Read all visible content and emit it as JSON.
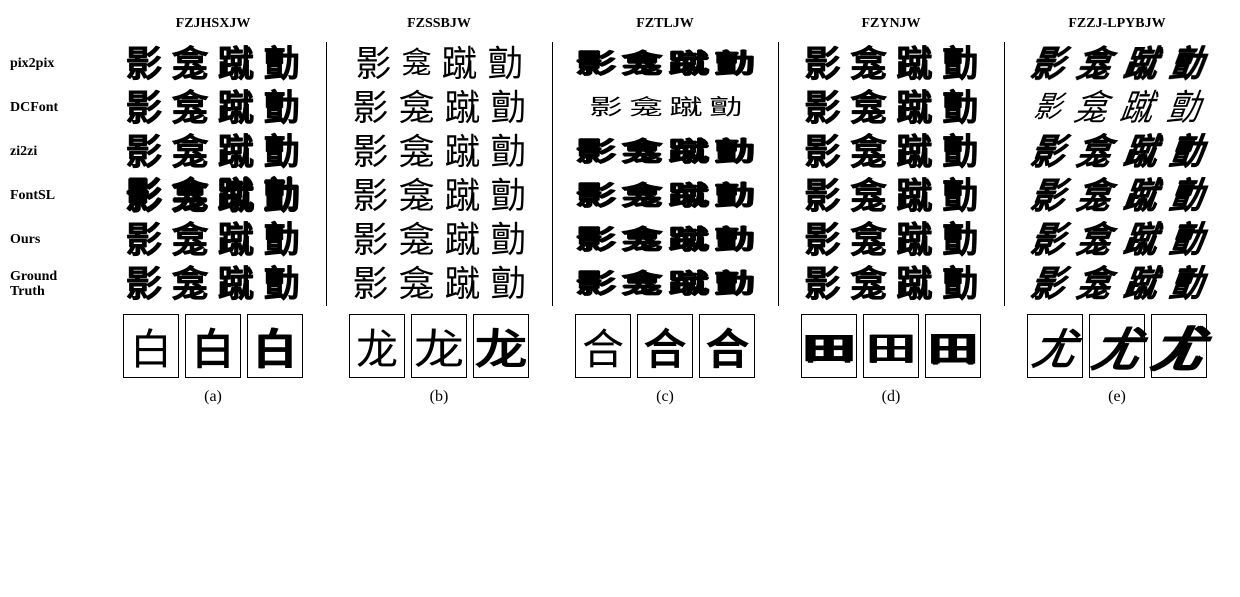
{
  "columns": [
    {
      "id": "a",
      "header": "FZJHSXJW",
      "sublabel": "(a)",
      "style": "bold"
    },
    {
      "id": "b",
      "header": "FZSSBJW",
      "sublabel": "(b)",
      "style": "thin"
    },
    {
      "id": "c",
      "header": "FZTLJW",
      "sublabel": "(c)",
      "style": "squat heavy"
    },
    {
      "id": "d",
      "header": "FZYNJW",
      "sublabel": "(d)",
      "style": "bold"
    },
    {
      "id": "e",
      "header": "FZZJ-LPYBJW",
      "sublabel": "(e)",
      "style": "slanted bold"
    }
  ],
  "rows": [
    {
      "id": "pix2pix",
      "label": "pix2pix"
    },
    {
      "id": "dcfont",
      "label": "DCFont"
    },
    {
      "id": "zi2zi",
      "label": "zi2zi"
    },
    {
      "id": "fontsl",
      "label": "FontSL"
    },
    {
      "id": "ours",
      "label": "Ours"
    },
    {
      "id": "gt",
      "label": "Ground\nTruth"
    }
  ],
  "chars": [
    "影",
    "龛",
    "蹴",
    "勯"
  ],
  "detail_chars": {
    "a": "白",
    "b": "龙",
    "c": "合",
    "d": "田",
    "e": "尤"
  },
  "detail_variants": [
    {
      "id": "v1",
      "transform": "scale(0.9)",
      "weight": "300"
    },
    {
      "id": "v2",
      "transform": "scale(1.0)",
      "weight": "700"
    },
    {
      "id": "v3",
      "transform": "scale(1.05)",
      "weight": "900"
    }
  ],
  "styling": {
    "background": "#ffffff",
    "text_color": "#000000",
    "border_color": "#000000",
    "header_fontsize": 14,
    "rowlabel_fontsize": 14,
    "glyph_fontsize": 36,
    "detail_fontsize": 42,
    "sublabel_fontsize": 16,
    "figure_width": 1240,
    "figure_height": 597
  }
}
